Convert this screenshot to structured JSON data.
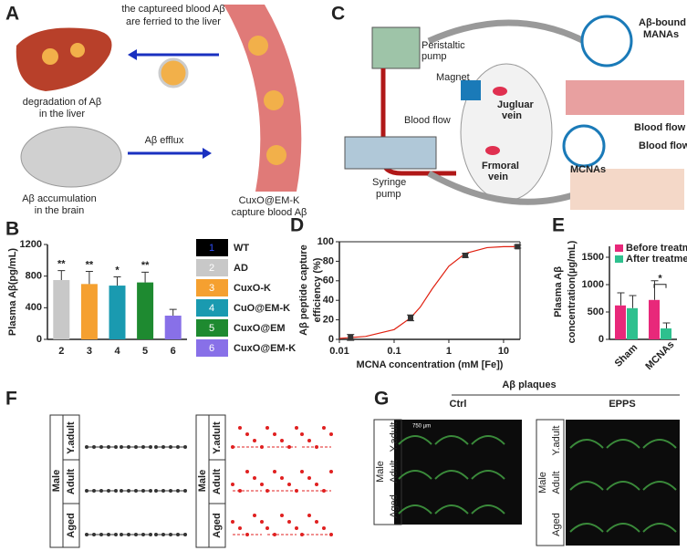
{
  "panels": {
    "A": {
      "label": "A",
      "top_text": [
        "the captureed blood Aβ",
        "are ferried to the liver"
      ],
      "liver_text": [
        "degradation of Aβ",
        "in the liver"
      ],
      "efflux": "Aβ efflux",
      "brain_text": [
        "Aβ accumulation",
        "in the brain"
      ],
      "vessel_text": [
        "CuxO@EM-K",
        "capture blood Aβ"
      ]
    },
    "C": {
      "label": "C",
      "peristaltic": [
        "Peristaltic",
        "pump"
      ],
      "magnet": "Magnet",
      "jugular": [
        "Jugluar",
        "vein"
      ],
      "blood_flow_1": "Blood flow",
      "femoral": [
        "Frmoral",
        "vein"
      ],
      "syringe": [
        "Syringe",
        "pump"
      ],
      "bound": [
        "Aβ-bound",
        "MANAs"
      ],
      "blood_flow_2": "Blood flow",
      "mcnas": "MCNAs",
      "blood_flow_3": "Blood flow"
    },
    "F": {
      "label": "F",
      "groups": [
        {
          "sex": "Male",
          "rows": [
            "Y.adult",
            "Adult",
            "Aged"
          ]
        },
        {
          "sex": "Male",
          "rows": [
            "Y.adult",
            "Adult",
            "Aged"
          ]
        }
      ]
    },
    "G": {
      "label": "G",
      "title": "Aβ plaques",
      "scale": "750 µm",
      "groups": [
        {
          "name": "Ctrl",
          "sex": "Male",
          "rows": [
            "Y.adult",
            "Adult",
            "Aged"
          ]
        },
        {
          "name": "EPPS",
          "sex": "Male",
          "rows": [
            "Y.adult",
            "Adult",
            "Aged"
          ]
        }
      ]
    }
  },
  "chart_data": [
    {
      "type": "bar",
      "panel_label": "B",
      "ylabel": "Plasma Aβ(pg/mL)",
      "categories": [
        "2",
        "3",
        "4",
        "5",
        "6"
      ],
      "values": [
        750,
        700,
        680,
        720,
        300
      ],
      "errors": [
        120,
        160,
        110,
        130,
        80
      ],
      "colors": [
        "#c8c8c8",
        "#f5a030",
        "#1a9ab0",
        "#1e8a30",
        "#8870e8"
      ],
      "annotations": [
        "**",
        "**",
        "*",
        "**",
        null
      ],
      "ylim": [
        0,
        1200
      ],
      "yticks": [
        0,
        400,
        800,
        1200
      ],
      "legend": [
        {
          "number": "1",
          "label": "WT",
          "color": "#000000"
        },
        {
          "number": "2",
          "label": "AD",
          "color": "#c8c8c8"
        },
        {
          "number": "3",
          "label": "CuxO-K",
          "color": "#f5a030"
        },
        {
          "number": "4",
          "label": "CuO@EM-K",
          "color": "#1a9ab0"
        },
        {
          "number": "5",
          "label": "CuxO@EM",
          "color": "#1e8a30"
        },
        {
          "number": "6",
          "label": "CuxO@EM-K",
          "color": "#8870e8"
        }
      ]
    },
    {
      "type": "scatter",
      "panel_label": "D",
      "ylabel": [
        "Aβ peptide capture",
        "efficiency (%)"
      ],
      "xlabel": "MCNA concentration (mM [Fe])",
      "x": [
        0.016,
        0.2,
        2,
        18
      ],
      "values": [
        2,
        22,
        86,
        95
      ],
      "errors": [
        3,
        3,
        2,
        1.5
      ],
      "color": "#333333",
      "fit": {
        "x": [
          0.01,
          0.03,
          0.1,
          0.2,
          0.3,
          0.5,
          1,
          2,
          5,
          10,
          20
        ],
        "values": [
          1,
          3,
          10,
          22,
          33,
          52,
          75,
          88,
          94,
          95,
          95
        ],
        "color": "#e02010"
      },
      "xscale": "log",
      "xlim": [
        0.01,
        20
      ],
      "xticks": [
        0.01,
        0.1,
        1,
        10
      ],
      "ylim": [
        0,
        100
      ],
      "yticks": [
        0,
        20,
        40,
        60,
        80,
        100
      ]
    },
    {
      "type": "grouped_bar",
      "panel_label": "E",
      "ylabel": [
        "Plasma Aβ",
        "concentration(µg/mL)"
      ],
      "categories": [
        "Sham",
        "MCNAs"
      ],
      "series": [
        {
          "name": "Before treatment",
          "color": "#e8287a",
          "values": [
            620,
            720
          ],
          "errors": [
            230,
            350
          ]
        },
        {
          "name": "After treatment",
          "color": "#2ec08e",
          "values": [
            570,
            200
          ],
          "errors": [
            230,
            100
          ]
        }
      ],
      "annotation": "*",
      "ylim": [
        0,
        1700
      ],
      "yticks": [
        0,
        500,
        1000,
        1500
      ]
    }
  ]
}
